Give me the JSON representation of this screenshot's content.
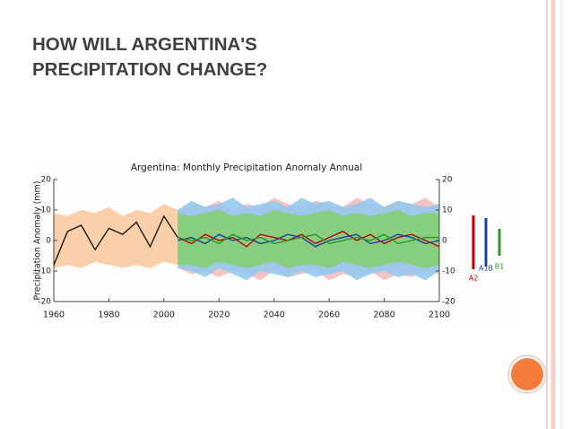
{
  "slide": {
    "title": "HOW WILL ARGENTINA'S PRECIPITATION CHANGE?"
  },
  "chart_data": {
    "type": "line",
    "title": "Argentina: Monthly Precipitation Anomaly Annual",
    "y_label": "Precipitation Anomaly (mm)",
    "x": [
      1960,
      1965,
      1970,
      1975,
      1980,
      1985,
      1990,
      1995,
      2000,
      2005,
      2010,
      2015,
      2020,
      2025,
      2030,
      2035,
      2040,
      2045,
      2050,
      2055,
      2060,
      2065,
      2070,
      2075,
      2080,
      2085,
      2090,
      2095,
      2100
    ],
    "xlim": [
      1960,
      2100
    ],
    "xticks": [
      1960,
      1980,
      2000,
      2020,
      2040,
      2060,
      2080,
      2100
    ],
    "ylim": [
      -20,
      20
    ],
    "yticks": [
      -20,
      -10,
      0,
      10,
      20
    ],
    "series": [
      {
        "color": "#1a1a1a",
        "band_color": "#f8c89a",
        "values": [
          -8,
          3,
          5,
          -3,
          4,
          2,
          6,
          -2,
          8,
          1,
          null,
          null,
          null,
          null,
          null,
          null,
          null,
          null,
          null,
          null,
          null,
          null,
          null,
          null,
          null,
          null,
          null,
          null,
          null
        ],
        "lower": [
          -9,
          -8,
          -9,
          -7,
          -8,
          -9,
          -8,
          -9,
          -7,
          -8,
          null,
          null,
          null,
          null,
          null,
          null,
          null,
          null,
          null,
          null,
          null,
          null,
          null,
          null,
          null,
          null,
          null,
          null,
          null
        ],
        "upper": [
          9,
          8,
          10,
          9,
          11,
          8,
          10,
          9,
          12,
          10,
          null,
          null,
          null,
          null,
          null,
          null,
          null,
          null,
          null,
          null,
          null,
          null,
          null,
          null,
          null,
          null,
          null,
          null,
          null
        ]
      },
      {
        "name": "A2",
        "color": "#c00000",
        "band_color": "#f4b8b8",
        "values": [
          null,
          null,
          null,
          null,
          null,
          null,
          null,
          null,
          null,
          1,
          -1,
          2,
          0,
          1,
          -2,
          2,
          1,
          0,
          2,
          -1,
          1,
          3,
          0,
          2,
          -1,
          1,
          2,
          0,
          -2
        ],
        "lower": [
          null,
          null,
          null,
          null,
          null,
          null,
          null,
          null,
          null,
          -9,
          -11,
          -10,
          -12,
          -10,
          -11,
          -13,
          -10,
          -12,
          -11,
          -10,
          -13,
          -11,
          -12,
          -10,
          -13,
          -11,
          -12,
          -10,
          -11
        ],
        "upper": [
          null,
          null,
          null,
          null,
          null,
          null,
          null,
          null,
          null,
          10,
          12,
          11,
          13,
          10,
          12,
          11,
          14,
          12,
          11,
          13,
          12,
          11,
          14,
          12,
          11,
          13,
          12,
          14,
          11
        ]
      },
      {
        "name": "A1B",
        "color": "#1f3f9f",
        "band_color": "#8ec8f0",
        "values": [
          null,
          null,
          null,
          null,
          null,
          null,
          null,
          null,
          null,
          0,
          1,
          -1,
          2,
          0,
          1,
          -1,
          0,
          2,
          1,
          -2,
          0,
          1,
          2,
          -1,
          0,
          2,
          1,
          -1,
          0
        ],
        "lower": [
          null,
          null,
          null,
          null,
          null,
          null,
          null,
          null,
          null,
          -9,
          -10,
          -12,
          -9,
          -11,
          -13,
          -10,
          -11,
          -12,
          -10,
          -12,
          -11,
          -10,
          -13,
          -11,
          -10,
          -12,
          -11,
          -13,
          -10
        ],
        "upper": [
          null,
          null,
          null,
          null,
          null,
          null,
          null,
          null,
          null,
          10,
          13,
          11,
          12,
          14,
          11,
          12,
          13,
          11,
          14,
          12,
          13,
          11,
          12,
          14,
          11,
          13,
          12,
          11,
          12
        ]
      },
      {
        "name": "B1",
        "color": "#2a9a2a",
        "band_color": "#82cf6c",
        "values": [
          null,
          null,
          null,
          null,
          null,
          null,
          null,
          null,
          null,
          1,
          0,
          1,
          -1,
          2,
          0,
          1,
          -1,
          0,
          1,
          2,
          -1,
          0,
          1,
          0,
          2,
          -1,
          0,
          1,
          1
        ],
        "lower": [
          null,
          null,
          null,
          null,
          null,
          null,
          null,
          null,
          null,
          -8,
          -8,
          -9,
          -7,
          -8,
          -9,
          -8,
          -7,
          -9,
          -8,
          -8,
          -9,
          -7,
          -8,
          -9,
          -8,
          -7,
          -8,
          -9,
          -8
        ],
        "upper": [
          null,
          null,
          null,
          null,
          null,
          null,
          null,
          null,
          null,
          9,
          8,
          9,
          10,
          8,
          9,
          8,
          10,
          9,
          8,
          9,
          10,
          8,
          9,
          8,
          9,
          10,
          8,
          9,
          9
        ]
      }
    ]
  }
}
